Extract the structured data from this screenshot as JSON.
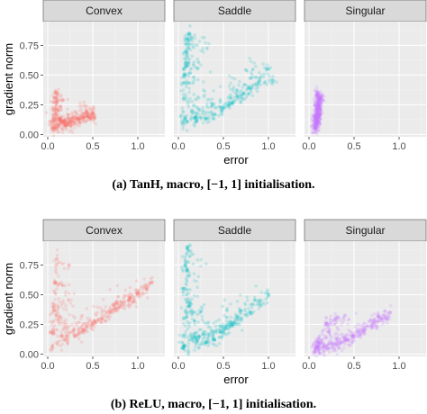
{
  "figure": {
    "caption_a_prefix": "(a) TanH, macro,",
    "caption_a_math": "[−1, 1]",
    "caption_a_suffix": "initialisation.",
    "caption_b_prefix": "(b) ReLU, macro,",
    "caption_b_math": "[−1, 1]",
    "caption_b_suffix": "initialisation."
  },
  "colors": {
    "Convex": "#f8766d",
    "Saddle": "#00bfc4",
    "Singular": "#c77cff",
    "panel_bg": "#ebebeb",
    "strip_bg": "#d9d9d9",
    "grid": "#ffffff"
  },
  "chart_data": [
    {
      "type": "scatter",
      "facets": [
        "Convex",
        "Saddle",
        "Singular"
      ],
      "xlabel": "error",
      "ylabel": "gradient norm",
      "xlim": [
        -0.05,
        1.3
      ],
      "ylim": [
        -0.02,
        0.95
      ],
      "xticks": [
        0.0,
        0.5,
        1.0
      ],
      "xtick_labels": [
        "0.0",
        "0.5",
        "1.0"
      ],
      "yticks": [
        0.0,
        0.25,
        0.5,
        0.75
      ],
      "ytick_labels": [
        "0.00",
        "0.25",
        "0.50",
        "0.75"
      ],
      "grid": true,
      "series": [
        {
          "name": "Convex",
          "points": [
            [
              0.05,
              0.05
            ],
            [
              0.06,
              0.12
            ],
            [
              0.07,
              0.2
            ],
            [
              0.08,
              0.3
            ],
            [
              0.09,
              0.35
            ],
            [
              0.1,
              0.15
            ],
            [
              0.12,
              0.08
            ],
            [
              0.15,
              0.1
            ],
            [
              0.2,
              0.08
            ],
            [
              0.25,
              0.1
            ],
            [
              0.3,
              0.12
            ],
            [
              0.35,
              0.13
            ],
            [
              0.4,
              0.14
            ],
            [
              0.45,
              0.17
            ],
            [
              0.5,
              0.18
            ],
            [
              0.52,
              0.14
            ]
          ]
        },
        {
          "name": "Saddle",
          "points": [
            [
              0.05,
              0.1
            ],
            [
              0.06,
              0.3
            ],
            [
              0.07,
              0.5
            ],
            [
              0.08,
              0.6
            ],
            [
              0.09,
              0.7
            ],
            [
              0.1,
              0.8
            ],
            [
              0.12,
              0.85
            ],
            [
              0.15,
              0.2
            ],
            [
              0.2,
              0.12
            ],
            [
              0.3,
              0.13
            ],
            [
              0.4,
              0.17
            ],
            [
              0.5,
              0.22
            ],
            [
              0.6,
              0.27
            ],
            [
              0.7,
              0.32
            ],
            [
              0.8,
              0.38
            ],
            [
              0.9,
              0.45
            ],
            [
              1.0,
              0.55
            ],
            [
              1.05,
              0.45
            ]
          ]
        },
        {
          "name": "Singular",
          "points": [
            [
              0.07,
              0.05
            ],
            [
              0.08,
              0.1
            ],
            [
              0.09,
              0.15
            ],
            [
              0.1,
              0.2
            ],
            [
              0.11,
              0.25
            ],
            [
              0.12,
              0.3
            ],
            [
              0.1,
              0.35
            ],
            [
              0.09,
              0.12
            ]
          ]
        }
      ]
    },
    {
      "type": "scatter",
      "facets": [
        "Convex",
        "Saddle",
        "Singular"
      ],
      "xlabel": "error",
      "ylabel": "gradient norm",
      "xlim": [
        -0.05,
        1.3
      ],
      "ylim": [
        -0.02,
        0.95
      ],
      "xticks": [
        0.0,
        0.5,
        1.0
      ],
      "xtick_labels": [
        "0.0",
        "0.5",
        "1.0"
      ],
      "yticks": [
        0.0,
        0.25,
        0.5,
        0.75
      ],
      "ytick_labels": [
        "0.00",
        "0.25",
        "0.50",
        "0.75"
      ],
      "grid": true,
      "series": [
        {
          "name": "Convex",
          "points": [
            [
              0.05,
              0.05
            ],
            [
              0.06,
              0.2
            ],
            [
              0.07,
              0.4
            ],
            [
              0.08,
              0.6
            ],
            [
              0.1,
              0.8
            ],
            [
              0.12,
              0.3
            ],
            [
              0.15,
              0.15
            ],
            [
              0.2,
              0.12
            ],
            [
              0.3,
              0.15
            ],
            [
              0.4,
              0.2
            ],
            [
              0.5,
              0.25
            ],
            [
              0.6,
              0.3
            ],
            [
              0.7,
              0.35
            ],
            [
              0.8,
              0.4
            ],
            [
              0.9,
              0.45
            ],
            [
              1.0,
              0.5
            ],
            [
              1.1,
              0.55
            ],
            [
              1.15,
              0.6
            ]
          ]
        },
        {
          "name": "Saddle",
          "points": [
            [
              0.05,
              0.05
            ],
            [
              0.06,
              0.3
            ],
            [
              0.07,
              0.55
            ],
            [
              0.08,
              0.75
            ],
            [
              0.1,
              0.9
            ],
            [
              0.12,
              0.4
            ],
            [
              0.15,
              0.15
            ],
            [
              0.2,
              0.12
            ],
            [
              0.3,
              0.1
            ],
            [
              0.4,
              0.12
            ],
            [
              0.5,
              0.2
            ],
            [
              0.6,
              0.25
            ],
            [
              0.7,
              0.3
            ],
            [
              0.8,
              0.35
            ],
            [
              0.9,
              0.45
            ],
            [
              1.0,
              0.5
            ]
          ]
        },
        {
          "name": "Singular",
          "points": [
            [
              0.06,
              0.02
            ],
            [
              0.08,
              0.05
            ],
            [
              0.1,
              0.1
            ],
            [
              0.2,
              0.05
            ],
            [
              0.3,
              0.08
            ],
            [
              0.4,
              0.12
            ],
            [
              0.5,
              0.15
            ],
            [
              0.6,
              0.2
            ],
            [
              0.7,
              0.25
            ],
            [
              0.8,
              0.3
            ],
            [
              0.9,
              0.35
            ],
            [
              0.2,
              0.25
            ],
            [
              0.3,
              0.3
            ]
          ]
        }
      ]
    }
  ]
}
